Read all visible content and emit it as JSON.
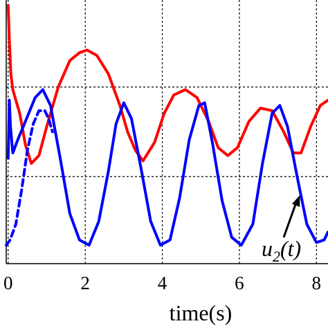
{
  "chart_data": {
    "type": "line",
    "xlabel": "time(s)",
    "x_ticks": [
      "0",
      "2",
      "4",
      "6",
      "8"
    ],
    "xlim": [
      -0.05,
      8.3
    ],
    "ylim": [
      0,
      1
    ],
    "grid": true,
    "grid_style": "dashed",
    "series": [
      {
        "color": "#ff0000",
        "style": "solid",
        "points": [
          [
            0.0,
            0.98
          ],
          [
            0.03,
            0.85
          ],
          [
            0.07,
            0.72
          ],
          [
            0.12,
            0.66
          ],
          [
            0.2,
            0.62
          ],
          [
            0.3,
            0.57
          ],
          [
            0.45,
            0.45
          ],
          [
            0.6,
            0.38
          ],
          [
            0.8,
            0.41
          ],
          [
            1.0,
            0.52
          ],
          [
            1.3,
            0.67
          ],
          [
            1.6,
            0.77
          ],
          [
            1.85,
            0.8
          ],
          [
            2.05,
            0.81
          ],
          [
            2.3,
            0.79
          ],
          [
            2.6,
            0.72
          ],
          [
            2.9,
            0.6
          ],
          [
            3.1,
            0.5
          ],
          [
            3.3,
            0.43
          ],
          [
            3.5,
            0.39
          ],
          [
            3.8,
            0.46
          ],
          [
            4.05,
            0.57
          ],
          [
            4.3,
            0.64
          ],
          [
            4.6,
            0.66
          ],
          [
            4.9,
            0.63
          ],
          [
            5.2,
            0.54
          ],
          [
            5.45,
            0.44
          ],
          [
            5.7,
            0.41
          ],
          [
            5.95,
            0.44
          ],
          [
            6.25,
            0.54
          ],
          [
            6.55,
            0.59
          ],
          [
            6.85,
            0.58
          ],
          [
            7.15,
            0.5
          ],
          [
            7.4,
            0.42
          ],
          [
            7.6,
            0.42
          ],
          [
            7.85,
            0.52
          ],
          [
            8.1,
            0.6
          ],
          [
            8.3,
            0.62
          ]
        ]
      },
      {
        "color": "#0000ff",
        "style": "solid",
        "points": [
          [
            0.0,
            0.4
          ],
          [
            0.03,
            0.62
          ],
          [
            0.06,
            0.52
          ],
          [
            0.12,
            0.42
          ],
          [
            0.25,
            0.47
          ],
          [
            0.45,
            0.54
          ],
          [
            0.7,
            0.63
          ],
          [
            0.9,
            0.66
          ],
          [
            1.1,
            0.6
          ],
          [
            1.35,
            0.4
          ],
          [
            1.6,
            0.19
          ],
          [
            1.85,
            0.09
          ],
          [
            2.1,
            0.07
          ],
          [
            2.35,
            0.16
          ],
          [
            2.6,
            0.35
          ],
          [
            2.8,
            0.53
          ],
          [
            3.0,
            0.61
          ],
          [
            3.2,
            0.55
          ],
          [
            3.45,
            0.36
          ],
          [
            3.7,
            0.16
          ],
          [
            3.95,
            0.07
          ],
          [
            4.2,
            0.09
          ],
          [
            4.45,
            0.25
          ],
          [
            4.7,
            0.47
          ],
          [
            4.95,
            0.6
          ],
          [
            5.1,
            0.61
          ],
          [
            5.3,
            0.46
          ],
          [
            5.55,
            0.24
          ],
          [
            5.8,
            0.1
          ],
          [
            6.05,
            0.07
          ],
          [
            6.35,
            0.15
          ],
          [
            6.6,
            0.38
          ],
          [
            6.85,
            0.57
          ],
          [
            7.05,
            0.6
          ],
          [
            7.25,
            0.52
          ],
          [
            7.5,
            0.33
          ],
          [
            7.75,
            0.15
          ],
          [
            8.0,
            0.08
          ],
          [
            8.2,
            0.09
          ],
          [
            8.3,
            0.12
          ]
        ]
      },
      {
        "color": "#0000ff",
        "style": "dashed",
        "points": [
          [
            -0.05,
            0.07
          ],
          [
            0.05,
            0.09
          ],
          [
            0.2,
            0.15
          ],
          [
            0.35,
            0.28
          ],
          [
            0.5,
            0.43
          ],
          [
            0.65,
            0.53
          ],
          [
            0.8,
            0.58
          ],
          [
            0.95,
            0.58
          ],
          [
            1.05,
            0.55
          ],
          [
            1.15,
            0.5
          ]
        ]
      }
    ],
    "annotations": [
      {
        "text": "u",
        "subscript": "2",
        "suffix": "(t)",
        "points_to": [
          7.57,
          0.26
        ]
      }
    ]
  }
}
